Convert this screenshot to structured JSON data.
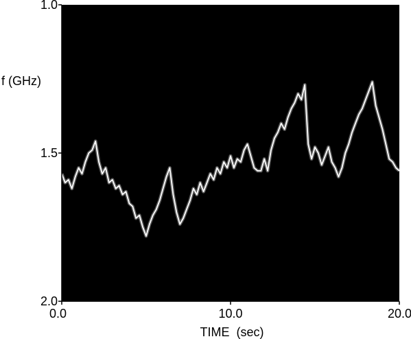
{
  "chart_data": {
    "type": "line",
    "title": "",
    "xlabel": "TIME  (sec)",
    "ylabel": "f (GHz)",
    "xlim": [
      0.0,
      20.0
    ],
    "ylim": [
      1.0,
      2.0
    ],
    "y_inverted": true,
    "x_ticks": [
      {
        "value": 0.0,
        "label": "0.0"
      },
      {
        "value": 10.0,
        "label": "10.0"
      },
      {
        "value": 20.0,
        "label": "20.0"
      }
    ],
    "y_ticks": [
      {
        "value": 1.0,
        "label": "1.0"
      },
      {
        "value": 1.5,
        "label": "1.5"
      },
      {
        "value": 2.0,
        "label": "2.0"
      }
    ],
    "grid": false,
    "colors": {
      "plot_background": "#000000",
      "trace": "#ffffff",
      "axis": "#000000"
    },
    "series": [
      {
        "x": [
          0.0,
          0.2,
          0.4,
          0.6,
          0.8,
          1.0,
          1.2,
          1.4,
          1.6,
          1.8,
          2.0,
          2.2,
          2.4,
          2.6,
          2.8,
          3.0,
          3.2,
          3.4,
          3.6,
          3.8,
          4.0,
          4.2,
          4.4,
          4.6,
          4.8,
          5.0,
          5.2,
          5.4,
          5.6,
          5.8,
          6.0,
          6.2,
          6.4,
          6.6,
          6.8,
          7.0,
          7.2,
          7.4,
          7.6,
          7.8,
          8.0,
          8.2,
          8.4,
          8.6,
          8.8,
          9.0,
          9.2,
          9.4,
          9.6,
          9.8,
          10.0,
          10.2,
          10.4,
          10.6,
          10.8,
          11.0,
          11.2,
          11.4,
          11.6,
          11.8,
          12.0,
          12.2,
          12.4,
          12.6,
          12.8,
          13.0,
          13.2,
          13.4,
          13.6,
          13.8,
          14.0,
          14.2,
          14.4,
          14.6,
          14.8,
          15.0,
          15.2,
          15.4,
          15.6,
          15.8,
          16.0,
          16.2,
          16.4,
          16.6,
          16.8,
          17.0,
          17.2,
          17.4,
          17.6,
          17.8,
          18.0,
          18.2,
          18.4,
          18.6,
          18.8,
          19.0,
          19.2,
          19.4,
          19.6,
          19.8,
          20.0
        ],
        "y": [
          1.57,
          1.6,
          1.59,
          1.62,
          1.58,
          1.55,
          1.57,
          1.53,
          1.5,
          1.49,
          1.46,
          1.53,
          1.57,
          1.55,
          1.6,
          1.59,
          1.62,
          1.61,
          1.64,
          1.63,
          1.67,
          1.68,
          1.72,
          1.71,
          1.75,
          1.78,
          1.74,
          1.71,
          1.69,
          1.66,
          1.62,
          1.58,
          1.55,
          1.64,
          1.7,
          1.74,
          1.72,
          1.69,
          1.66,
          1.62,
          1.64,
          1.6,
          1.63,
          1.6,
          1.57,
          1.59,
          1.55,
          1.57,
          1.53,
          1.55,
          1.51,
          1.55,
          1.52,
          1.53,
          1.49,
          1.47,
          1.51,
          1.55,
          1.56,
          1.56,
          1.52,
          1.56,
          1.49,
          1.45,
          1.43,
          1.4,
          1.42,
          1.38,
          1.35,
          1.33,
          1.3,
          1.32,
          1.27,
          1.47,
          1.52,
          1.48,
          1.5,
          1.54,
          1.51,
          1.48,
          1.53,
          1.55,
          1.58,
          1.55,
          1.5,
          1.47,
          1.43,
          1.4,
          1.37,
          1.35,
          1.32,
          1.29,
          1.26,
          1.34,
          1.38,
          1.42,
          1.47,
          1.52,
          1.53,
          1.55,
          1.56
        ]
      }
    ]
  }
}
